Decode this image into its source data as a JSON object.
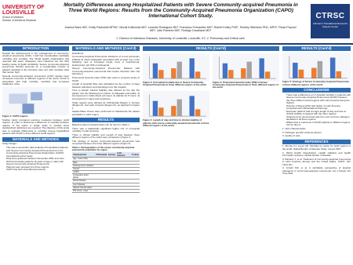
{
  "header": {
    "logo": {
      "university": "UNIVERSITY OF LOUISVILLE",
      "unit": "School of Medicine",
      "division": "Division of Infectious Diseases"
    },
    "title": "Mortality Differences among Hospitalized Patients with Severe Community-acquired Pneumonia in Three World Regions: Results from the Community-Acquired Pneumonia Organization (CAPO) International Cohort Study.",
    "authors": "Joanna Baez MD¹, Emily Pacholski MPHc¹, Murali Kolikonda MD¹, Leandro Rodriguez MD¹, Francisco Fernandez MD¹, Robert Kelley PhD¹, Timothy Wiemken PhD, MPH¹, Paula Peyrani MD¹, Julio Ramirez MD¹, Rodrigo Cavallazzi MD¹",
    "affiliations": "1. Division of Infectious Diseases, University of Louisville, Louisville, KY; 2. Pulmonary and Critical care",
    "right_logo": {
      "acronym": "CTRSC",
      "name": "Clinical & Translational Research Support Center"
    }
  },
  "columns": [
    [
      {
        "heading": "INTRODUCTION",
        "blocks": [
          {
            "type": "p",
            "text": "Despite the advancement in the management of community-acquired pneumonia (CAP), it still has considerable worldwide morbidity and mortality. The World Health Organization has reported that lower respiratory tract infections are the third leading cause of death worldwide. Severe community-acquired pneumonia (SCAP) accounts for a considerable number of patients admitted to the intensive care unit, with mortality rates that remain high."
          },
          {
            "type": "p",
            "text": "Several community-acquired pneumonia (CAP) studies have compared outcomes in different regions of the world. SCAP is associated with high mortality, morbidity and increased healthcare costs."
          },
          {
            "type": "figure",
            "caption": "Figure 1: CAPO regions"
          },
          {
            "type": "p",
            "text": "Studies rarely compared outcome measures between world regions. In order to determine a difference in mortality between regions of the world, a single study is needed since standardized definitions are required. The objective of this study was to evaluate differences in mortality among hospitalized patients with SCAP in three different world regions."
          }
        ]
      },
      {
        "heading": "MATERIALS AND METHODS",
        "blocks": [
          {
            "type": "p",
            "text": "Study Design:"
          },
          {
            "type": "ul",
            "items": [
              "This was a secondary data analysis of hospitalized patients with Severe Community-Acquired Pneumonia from the Community-Acquired Pneumonia Organization (CAPO) international cohort study.",
              "Data were gathered between November 2001 and June 2013 and include patients 18 years of age or older with Severe Community-Acquired Pneumonia.",
              "Patients were grouped into three regions.",
              "CAPO has been described previously."
            ]
          }
        ]
      }
    ],
    [
      {
        "heading": "MATERIALS AND METHODS (Cont'd)",
        "blocks": [
          {
            "type": "p",
            "text": "Definitions:"
          },
          {
            "type": "p",
            "text": "Community-Acquired Pneumonia: Evidence of a new pulmonary infiltrate at chest radiograph associated with at least one of the following: new or increased cough, fever or hypothermia, leukocytosis, left shift or leukopenia."
          },
          {
            "type": "p",
            "text": "Severe Community-Acquired Pneumonia: Patients with community-acquired pneumonia that require intensive care unit admission."
          },
          {
            "type": "p",
            "text": "Pneumonia Severity Index (PSI) was used to compare acuity of SCAP."
          },
          {
            "type": "p",
            "text": "Length of Hospital Stay was calculated as the number of days between admission and discharge from the hospital."
          },
          {
            "type": "p",
            "text": "Time to Reach Clinical Stability was defined as the day the patient met the following four criteria: 1) Adequate oral intake, 2) improvement in white blood cell count, 3) afebrile for 8 hours, 4) improvement in signs and symptoms."
          },
          {
            "type": "p",
            "text": "Study regions were defined as US/Canada (Region I), Europe (Region II), and Latin America (Region III), as depicted in Figure 1."
          },
          {
            "type": "p",
            "text": "Kaplan-Meier curves were performed to characterize the patient population in each region."
          }
        ]
      },
      {
        "heading": "RESULTS",
        "blocks": [
          {
            "type": "p",
            "text": "Baseline patient characteristics can be found in Table 1."
          },
          {
            "type": "p",
            "text": "There was a statistically significant higher risk of in-hospital mortality in Latin America."
          },
          {
            "type": "p",
            "text": "There is clinical stability and Length of stay between three different regions of the world were compared in Figure 4."
          },
          {
            "type": "p",
            "text": "The etiology of severe community-acquired pneumonia was compared between the three different regions (Figure 5)."
          },
          {
            "type": "table",
            "caption": "Table 1. Demographics of the severe community-acquired pneumonia population by region",
            "columns": [
              "Characteristic",
              "US/Canada",
              "Europe",
              "Latin America",
              "P value"
            ],
            "rows": [
              [
                "Age, mean (SD)"
              ],
              [
                "Male"
              ],
              [
                "Nursing home resident"
              ],
              [
                "Cancer"
              ],
              [
                "COPD"
              ],
              [
                "Congestive heart failure"
              ],
              [
                "Renal disease"
              ],
              [
                "Liver disease"
              ],
              [
                "Altered mental status"
              ],
              [
                "PSI score, mean"
              ]
            ]
          }
        ]
      }
    ],
    [
      {
        "heading": "RESULTS (Cont'd)",
        "blocks": [
          {
            "type": "figure",
            "caption": "Figure 2: In-hospital mortality due to Severe Community-Acquired Pneumonia in three different regions of the world"
          },
          {
            "type": "figure",
            "caption": "Figure 3: Pneumonia Severity Index (PSI) in Severe Community-Acquired Pneumonia in three different regions of the world"
          },
          {
            "type": "figure",
            "caption": "Figure 4: Length of stay and time to clinical stability of patients with severe community-acquired pneumonia in three different regions of the world"
          }
        ]
      }
    ],
    [
      {
        "heading": "RESULTS (Cont'd)",
        "blocks": [
          {
            "type": "figure",
            "caption": "Figure 5: Etiology of Severe Community-Acquired Pneumonia in three different regions of the world"
          }
        ]
      },
      {
        "heading": "CONCLUSIONS",
        "blocks": [
          {
            "type": "ul",
            "items": [
              "There was a difference on in-hospital mortality in patients with Severe Community-Acquired Pneumonia (SCAP) between the three different world regions with Latin America being the highest.",
              "Severity of illness (PSI) was higher in Latin America compared with US/Canada and Europe.",
              "European patients had a longer length of stay and time to clinical stability compared with the other regions.",
              "Streptococcus pneumoniae was the most common pathogen identified in all three regions.",
              "Differences in outcomes of SCAP patients in different regions can be due to:"
            ]
          },
          {
            "type": "p",
            "text": "1. Host characteristics"
          },
          {
            "type": "p",
            "text": "2. Pathogen specific virulence factors"
          },
          {
            "type": "p",
            "text": "3. Quality of care"
          }
        ]
      },
      {
        "heading": "REFERENCES",
        "blocks": [
          {
            "type": "p",
            "text": "1. Murray CJ, Lopez AD. Mortality by cause for eight regions of the world: Global Burden of Disease Study. Lancet 1997."
          },
          {
            "type": "p",
            "text": "2. World Health Organization. Health statistics and health information systems: Global burden of disease."
          },
          {
            "type": "p",
            "text": "3. Ramirez J, et al. Treatment of community-acquired pneumonia in Latin America, Europe and the United States. CAPO. Clin Infect Dis."
          },
          {
            "type": "p",
            "text": "4. Arnold FW, et al. A worldwide perspective of atypical pathogens in community-acquired pneumonia. Am J Respir Crit Care Med."
          }
        ]
      }
    ]
  ]
}
